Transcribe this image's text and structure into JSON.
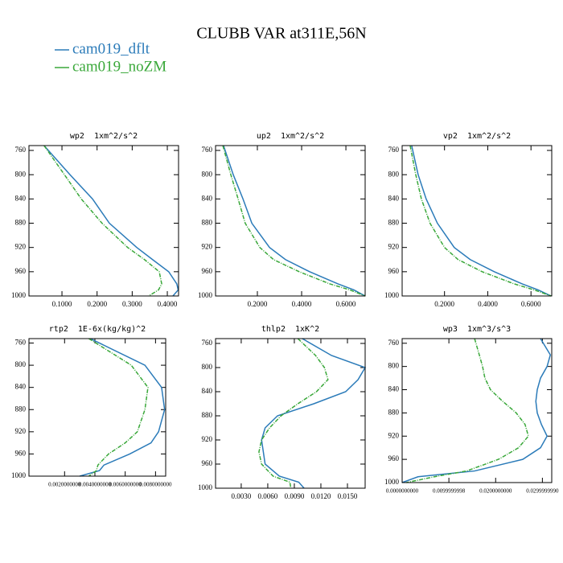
{
  "title": "CLUBB VAR at311E,56N",
  "chart_data": [
    {
      "type": "line",
      "title": "wp2  1xm^2/s^2",
      "y": [
        752,
        800,
        840,
        880,
        920,
        940,
        960,
        980,
        990,
        1000
      ],
      "series": [
        {
          "name": "cam019_dflt",
          "color": "#2b7bb9",
          "values": [
            0.049,
            0.123,
            0.187,
            0.235,
            0.313,
            0.358,
            0.404,
            0.427,
            0.431,
            0.416
          ]
        },
        {
          "name": "cam019_noZM",
          "color": "#3aa83a",
          "values": [
            0.049,
            0.107,
            0.155,
            0.214,
            0.287,
            0.335,
            0.377,
            0.384,
            0.375,
            0.347
          ]
        }
      ],
      "xlim": [
        0.006,
        0.432
      ],
      "xticks": [
        {
          "value": 0.1,
          "label": "0.1000"
        },
        {
          "value": 0.2,
          "label": "0.2000"
        },
        {
          "value": 0.3,
          "label": "0.3000"
        },
        {
          "value": 0.4,
          "label": "0.4000"
        }
      ],
      "ylim": [
        1000,
        752
      ],
      "yticks": [
        760,
        800,
        840,
        880,
        920,
        960,
        1000
      ]
    },
    {
      "type": "line",
      "title": "up2  1xm^2/s^2",
      "y": [
        752,
        800,
        840,
        880,
        920,
        940,
        960,
        980,
        990,
        1000
      ],
      "series": [
        {
          "color": "#2b7bb9",
          "values": [
            0.047,
            0.091,
            0.135,
            0.175,
            0.255,
            0.327,
            0.436,
            0.564,
            0.636,
            0.687
          ]
        },
        {
          "color": "#3aa83a",
          "values": [
            0.044,
            0.08,
            0.113,
            0.145,
            0.211,
            0.273,
            0.389,
            0.527,
            0.618,
            0.687
          ]
        }
      ],
      "xlim": [
        0.011,
        0.687
      ],
      "xticks": [
        {
          "value": 0.2,
          "label": "0.2000"
        },
        {
          "value": 0.4,
          "label": "0.4000"
        },
        {
          "value": 0.6,
          "label": "0.6000"
        }
      ],
      "ylim": [
        1000,
        752
      ],
      "yticks": [
        760,
        800,
        840,
        880,
        920,
        960,
        1000
      ]
    },
    {
      "type": "line",
      "title": "vp2  1xm^2/s^2",
      "y": [
        752,
        800,
        840,
        880,
        920,
        940,
        960,
        980,
        990,
        1000
      ],
      "series": [
        {
          "color": "#2b7bb9",
          "values": [
            0.048,
            0.078,
            0.115,
            0.167,
            0.245,
            0.319,
            0.43,
            0.559,
            0.633,
            0.693
          ]
        },
        {
          "color": "#3aa83a",
          "values": [
            0.041,
            0.067,
            0.093,
            0.133,
            0.2,
            0.263,
            0.374,
            0.522,
            0.615,
            0.693
          ]
        }
      ],
      "xlim": [
        0.004,
        0.696
      ],
      "xticks": [
        {
          "value": 0.2,
          "label": "0.2000"
        },
        {
          "value": 0.4,
          "label": "0.4000"
        },
        {
          "value": 0.6,
          "label": "0.6000"
        }
      ],
      "ylim": [
        1000,
        752
      ],
      "yticks": [
        760,
        800,
        840,
        880,
        920,
        960,
        1000
      ]
    },
    {
      "type": "line",
      "title": "rtp2  1E-6x(kg/kg)^2",
      "y": [
        752,
        800,
        840,
        880,
        920,
        940,
        960,
        980,
        990,
        1000
      ],
      "series": [
        {
          "color": "#2b7bb9",
          "values": [
            0.0037,
            0.0073,
            0.0084,
            0.0086,
            0.0082,
            0.0077,
            0.0063,
            0.0046,
            0.0043,
            0.003
          ]
        },
        {
          "color": "#3aa83a",
          "values": [
            0.0036,
            0.0064,
            0.0075,
            0.0073,
            0.0068,
            0.006,
            0.0049,
            0.0042,
            0.0041,
            0.0036
          ]
        }
      ],
      "xlim": [
        -0.00035,
        0.00867
      ],
      "xticks": [
        {
          "value": 0.002,
          "label": "0.0020000000"
        },
        {
          "value": 0.004,
          "label": "0.0040000000"
        },
        {
          "value": 0.006,
          "label": "0.0060000000"
        },
        {
          "value": 0.008,
          "label": "0.0080000000"
        }
      ],
      "ylim": [
        1000,
        752
      ],
      "yticks": [
        760,
        800,
        840,
        880,
        920,
        960,
        1000
      ]
    },
    {
      "type": "line",
      "title": "thlp2  1xK^2",
      "y": [
        752,
        780,
        800,
        820,
        840,
        860,
        880,
        900,
        920,
        940,
        960,
        980,
        990,
        1000
      ],
      "series": [
        {
          "color": "#2b7bb9",
          "values": [
            0.0099,
            0.0132,
            0.017,
            0.0162,
            0.0148,
            0.0112,
            0.0071,
            0.0057,
            0.0053,
            0.0055,
            0.0057,
            0.0073,
            0.0095,
            0.0101
          ]
        },
        {
          "color": "#3aa83a",
          "values": [
            0.0094,
            0.0114,
            0.0124,
            0.0128,
            0.0115,
            0.0094,
            0.0075,
            0.0062,
            0.0053,
            0.005,
            0.0053,
            0.0066,
            0.0085,
            0.0086
          ]
        }
      ],
      "xlim": [
        0.0001,
        0.017
      ],
      "xticks": [
        {
          "value": 0.003,
          "label": "0.0030"
        },
        {
          "value": 0.006,
          "label": "0.0060"
        },
        {
          "value": 0.009,
          "label": "0.0090"
        },
        {
          "value": 0.012,
          "label": "0.0120"
        },
        {
          "value": 0.015,
          "label": "0.0150"
        }
      ],
      "ylim": [
        1000,
        752
      ],
      "yticks": [
        760,
        800,
        840,
        880,
        920,
        960,
        1000
      ]
    },
    {
      "type": "line",
      "title": "wp3  1xm^3/s^3",
      "y": [
        752,
        780,
        800,
        820,
        840,
        860,
        880,
        900,
        920,
        940,
        960,
        980,
        990,
        1000
      ],
      "series": [
        {
          "color": "#2b7bb9",
          "values": [
            0.0296,
            0.0317,
            0.031,
            0.0296,
            0.0289,
            0.0286,
            0.0289,
            0.0298,
            0.031,
            0.0296,
            0.0258,
            0.0155,
            0.0034,
            0.0
          ]
        },
        {
          "color": "#3aa83a",
          "values": [
            0.0155,
            0.0165,
            0.0172,
            0.0177,
            0.0189,
            0.0215,
            0.0244,
            0.0263,
            0.027,
            0.0249,
            0.0206,
            0.0138,
            0.0069,
            0.0009
          ]
        }
      ],
      "xlim": [
        0,
        0.032
      ],
      "xticks": [
        {
          "value": 0,
          "label": "0.0000000000"
        },
        {
          "value": 0.01,
          "label": "0.0099999998"
        },
        {
          "value": 0.02,
          "label": "0.0200000000"
        },
        {
          "value": 0.03,
          "label": "0.0299999990"
        }
      ],
      "ylim": [
        1000,
        752
      ],
      "yticks": [
        760,
        800,
        840,
        880,
        920,
        960,
        1000
      ]
    }
  ]
}
